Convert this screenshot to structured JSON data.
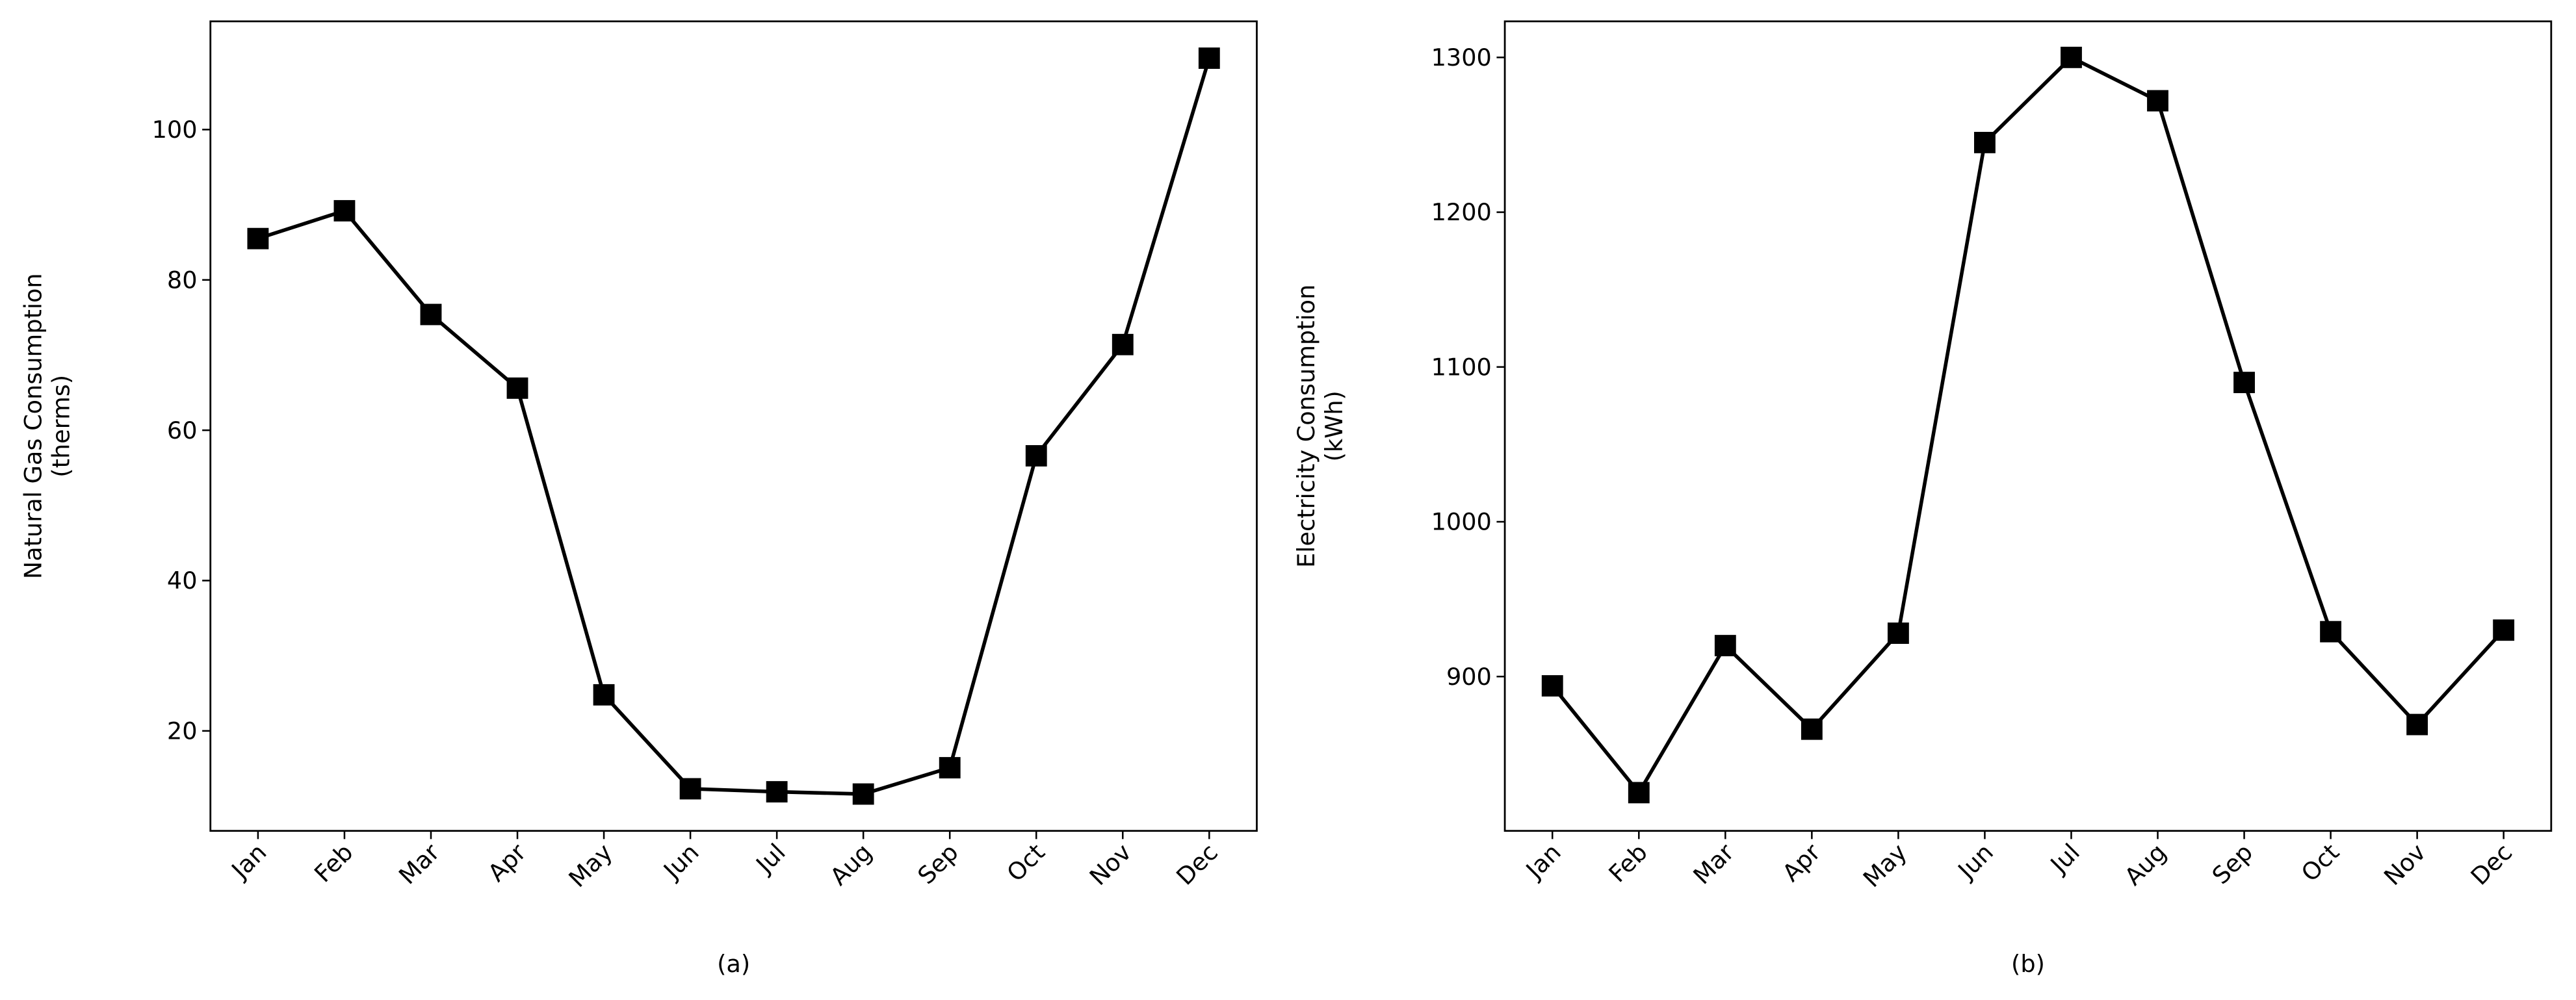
{
  "chart_data": [
    {
      "type": "line",
      "x_label": "(a)",
      "y_label": [
        "Natural Gas Consumption",
        "(therms)"
      ],
      "categories": [
        "Jan",
        "Feb",
        "Mar",
        "Apr",
        "May",
        "Jun",
        "Jul",
        "Aug",
        "Sep",
        "Oct",
        "Nov",
        "Dec"
      ],
      "values": [
        85.5,
        89.2,
        75.4,
        65.6,
        24.8,
        12.3,
        11.9,
        11.6,
        15.1,
        56.6,
        71.4,
        109.5
      ],
      "color": "#000000",
      "marker": "square",
      "ylim": [
        6.7,
        114.4
      ],
      "yticks": [
        20,
        40,
        60,
        80,
        100
      ]
    },
    {
      "type": "line",
      "x_label": "(b)",
      "y_label": [
        "Electricity Consumption",
        "(kWh)"
      ],
      "categories": [
        "Jan",
        "Feb",
        "Mar",
        "Apr",
        "May",
        "Jun",
        "Jul",
        "Aug",
        "Sep",
        "Oct",
        "Nov",
        "Dec"
      ],
      "values": [
        894,
        825,
        920,
        866,
        928,
        1245,
        1300,
        1272,
        1090,
        929,
        869,
        930
      ],
      "color": "#000000",
      "marker": "square",
      "ylim": [
        800.3,
        1323.3
      ],
      "yticks": [
        900,
        1000,
        1100,
        1200,
        1300
      ]
    }
  ]
}
